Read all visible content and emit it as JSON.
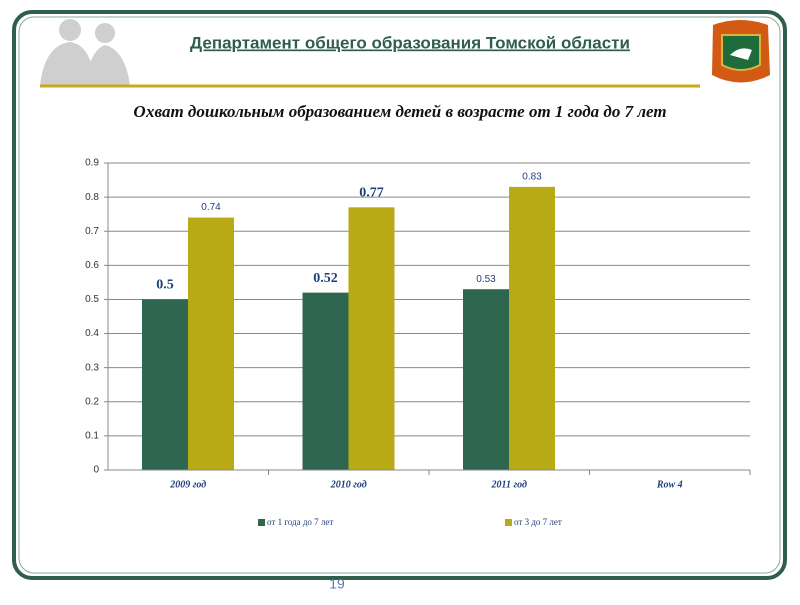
{
  "header": {
    "title": "Департамент общего образования Томской области"
  },
  "chart_data": {
    "type": "bar",
    "title": "Охват дошкольным образованием детей в возрасте от 1 года до 7 лет",
    "categories": [
      "2009 год",
      "2010 год",
      "2011 год",
      "Row 4"
    ],
    "series": [
      {
        "name": "от 1 года до 7 лет",
        "color": "#2f6650",
        "values": [
          0.5,
          0.52,
          0.53,
          null
        ]
      },
      {
        "name": "от 3 до 7 лет",
        "color": "#b8aa14",
        "values": [
          0.74,
          0.77,
          0.83,
          null
        ]
      }
    ],
    "ylim": [
      0,
      0.9
    ],
    "yticks": [
      0,
      0.1,
      0.2,
      0.3,
      0.4,
      0.5,
      0.6,
      0.7,
      0.8,
      0.9
    ],
    "grid": true,
    "legend": "bottom"
  },
  "footer": {
    "page_number": "19"
  }
}
